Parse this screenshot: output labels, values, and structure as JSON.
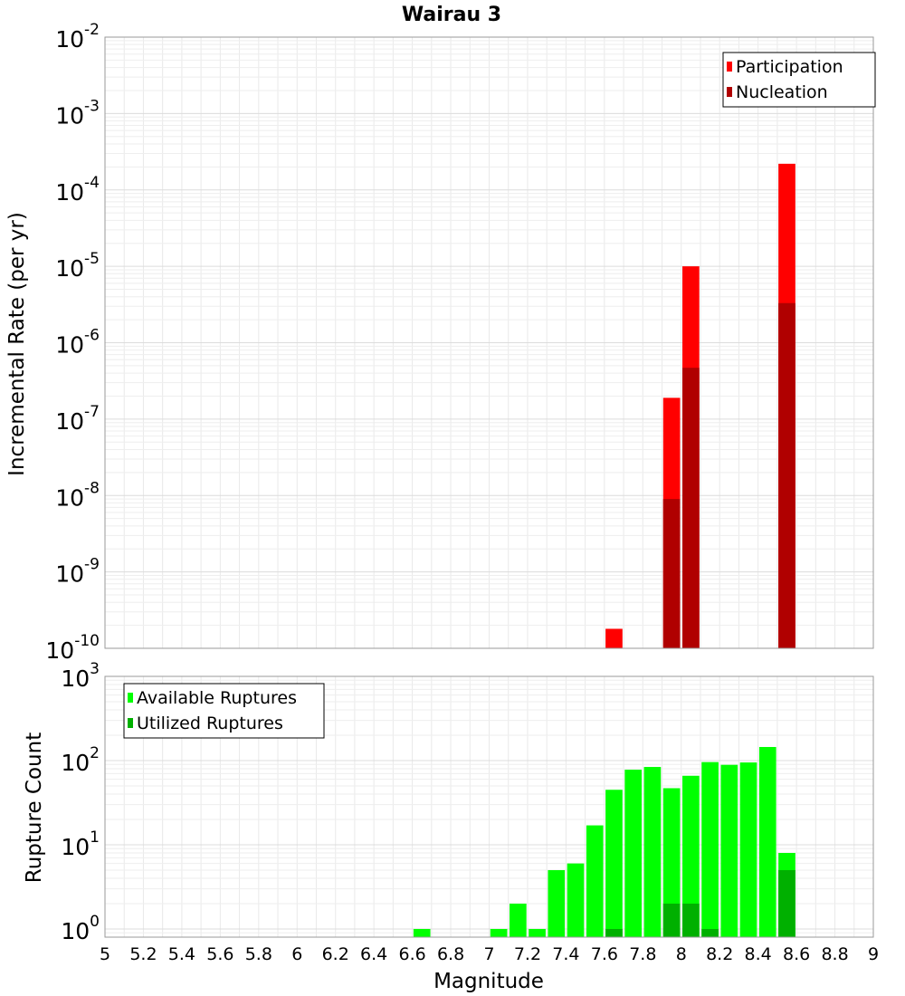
{
  "chart_data": [
    {
      "type": "bar",
      "title": "Wairau 3",
      "xlabel": "",
      "ylabel": "Incremental Rate (per yr)",
      "y_scale": "log",
      "ylim": [
        1e-10,
        0.01
      ],
      "xlim": [
        5,
        9
      ],
      "grid": true,
      "legend_position": "top-right",
      "y_tick_labels": [
        {
          "base": "10",
          "exp": "-2"
        },
        {
          "base": "10",
          "exp": "-3"
        },
        {
          "base": "10",
          "exp": "-4"
        },
        {
          "base": "10",
          "exp": "-5"
        },
        {
          "base": "10",
          "exp": "-6"
        },
        {
          "base": "10",
          "exp": "-7"
        },
        {
          "base": "10",
          "exp": "-8"
        },
        {
          "base": "10",
          "exp": "-9"
        },
        {
          "base": "10",
          "exp": "-10"
        }
      ],
      "series": [
        {
          "name": "Participation",
          "color": "#ff0000",
          "points": [
            {
              "x": 7.65,
              "y": 1.8e-10
            },
            {
              "x": 7.95,
              "y": 1.9e-07
            },
            {
              "x": 8.05,
              "y": 1e-05
            },
            {
              "x": 8.55,
              "y": 0.00022
            }
          ]
        },
        {
          "name": "Nucleation",
          "color": "#b00000",
          "points": [
            {
              "x": 7.95,
              "y": 9e-09
            },
            {
              "x": 8.05,
              "y": 4.7e-07
            },
            {
              "x": 8.55,
              "y": 3.3e-06
            }
          ]
        }
      ]
    },
    {
      "type": "bar",
      "title": "",
      "xlabel": "Magnitude",
      "ylabel": "Rupture Count",
      "y_scale": "log",
      "ylim": [
        0.8,
        1000
      ],
      "xlim": [
        5,
        9
      ],
      "grid": true,
      "legend_position": "top-left",
      "x_ticks": [
        "5",
        "5.2",
        "5.4",
        "5.6",
        "5.8",
        "6",
        "6.2",
        "6.4",
        "6.6",
        "6.8",
        "7",
        "7.2",
        "7.4",
        "7.6",
        "7.8",
        "8",
        "8.2",
        "8.4",
        "8.6",
        "8.8",
        "9"
      ],
      "y_tick_labels": [
        {
          "base": "10",
          "exp": "3"
        },
        {
          "base": "10",
          "exp": "2"
        },
        {
          "base": "10",
          "exp": "1"
        },
        {
          "base": "10",
          "exp": "0"
        }
      ],
      "series": [
        {
          "name": "Available Ruptures",
          "color": "#00ff00",
          "points": [
            {
              "x": 6.65,
              "y": 1
            },
            {
              "x": 7.05,
              "y": 1
            },
            {
              "x": 7.15,
              "y": 2
            },
            {
              "x": 7.25,
              "y": 1
            },
            {
              "x": 7.35,
              "y": 5
            },
            {
              "x": 7.45,
              "y": 6
            },
            {
              "x": 7.55,
              "y": 17
            },
            {
              "x": 7.65,
              "y": 45
            },
            {
              "x": 7.75,
              "y": 78
            },
            {
              "x": 7.85,
              "y": 84
            },
            {
              "x": 7.95,
              "y": 47
            },
            {
              "x": 8.05,
              "y": 66
            },
            {
              "x": 8.15,
              "y": 96
            },
            {
              "x": 8.25,
              "y": 89
            },
            {
              "x": 8.35,
              "y": 95
            },
            {
              "x": 8.45,
              "y": 145
            },
            {
              "x": 8.55,
              "y": 8
            }
          ]
        },
        {
          "name": "Utilized Ruptures",
          "color": "#00b000",
          "points": [
            {
              "x": 7.65,
              "y": 1
            },
            {
              "x": 7.95,
              "y": 2
            },
            {
              "x": 8.05,
              "y": 2
            },
            {
              "x": 8.15,
              "y": 1
            },
            {
              "x": 8.55,
              "y": 5
            }
          ]
        }
      ]
    }
  ]
}
